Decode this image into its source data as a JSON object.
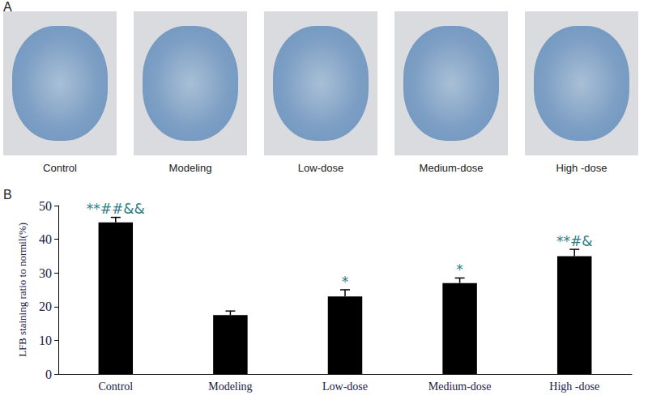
{
  "panel_a": {
    "label": "A",
    "image_captions": [
      "Control",
      "Modeling",
      "Low-dose",
      "Medium-dose",
      "High -dose"
    ]
  },
  "panel_b": {
    "label": "B"
  },
  "chart_data": {
    "type": "bar",
    "y_label": "LFB staining ratio to normil(%)",
    "categories": [
      "Control",
      "Modeling",
      "Low-dose",
      "Medium-dose",
      "High -dose"
    ],
    "values": [
      45,
      17.5,
      23,
      27,
      35
    ],
    "errors": [
      1.5,
      1.2,
      2,
      1.5,
      2
    ],
    "annotations": [
      "**##&&",
      null,
      "*",
      "*",
      "**#&"
    ],
    "color": "#000000",
    "ylim": [
      0,
      50
    ],
    "yticks": [
      0,
      10,
      20,
      30,
      40,
      50
    ],
    "grid": false
  }
}
